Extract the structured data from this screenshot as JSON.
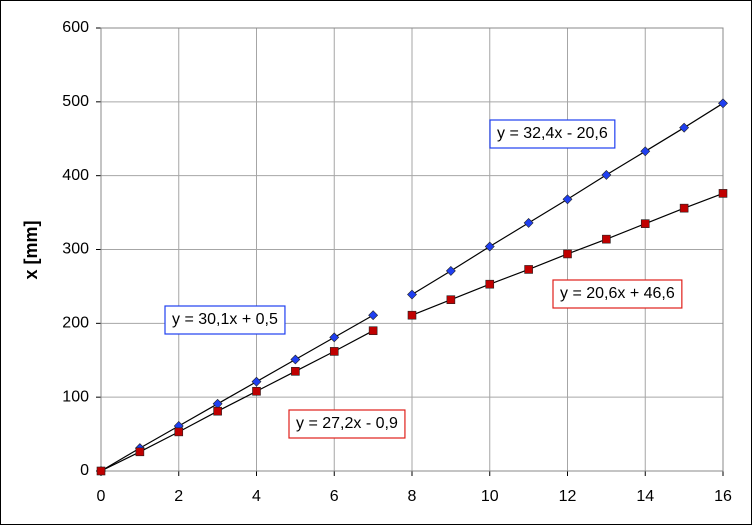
{
  "chart_data": {
    "type": "scatter",
    "ylabel": "x [mm]",
    "xlim": [
      0,
      16
    ],
    "xticks": [
      0,
      2,
      4,
      6,
      8,
      10,
      12,
      14,
      16
    ],
    "ylim": [
      0,
      600
    ],
    "yticks": [
      0,
      100,
      200,
      300,
      400,
      500,
      600
    ],
    "grid": true,
    "line_color": "#000000",
    "series": [
      {
        "marker": "diamond",
        "color": "#1f3ff0",
        "x": [
          0,
          1,
          2,
          3,
          4,
          5,
          6,
          7
        ],
        "values": [
          0,
          31,
          61,
          91,
          121,
          151,
          181,
          211
        ]
      },
      {
        "marker": "square",
        "color": "#c00000",
        "x": [
          0,
          1,
          2,
          3,
          4,
          5,
          6,
          7
        ],
        "values": [
          0,
          26,
          53,
          81,
          108,
          135,
          162,
          190
        ]
      },
      {
        "marker": "diamond",
        "color": "#1f3ff0",
        "x": [
          8,
          9,
          10,
          11,
          12,
          13,
          14,
          15,
          16
        ],
        "values": [
          239,
          271,
          304,
          336,
          368,
          401,
          433,
          465,
          498
        ]
      },
      {
        "marker": "square",
        "color": "#c00000",
        "x": [
          8,
          9,
          10,
          11,
          12,
          13,
          14,
          15,
          16
        ],
        "values": [
          211,
          232,
          253,
          273,
          294,
          314,
          335,
          356,
          376
        ]
      }
    ],
    "annotations": [
      {
        "text": "y = 30,1x + 0,5",
        "color": "#1f3ff0"
      },
      {
        "text": "y = 27,2x - 0,9",
        "color": "#e0201a"
      },
      {
        "text": "y = 32,4x - 20,6",
        "color": "#1f3ff0"
      },
      {
        "text": "y = 20,6x + 46,6",
        "color": "#e0201a"
      }
    ]
  }
}
